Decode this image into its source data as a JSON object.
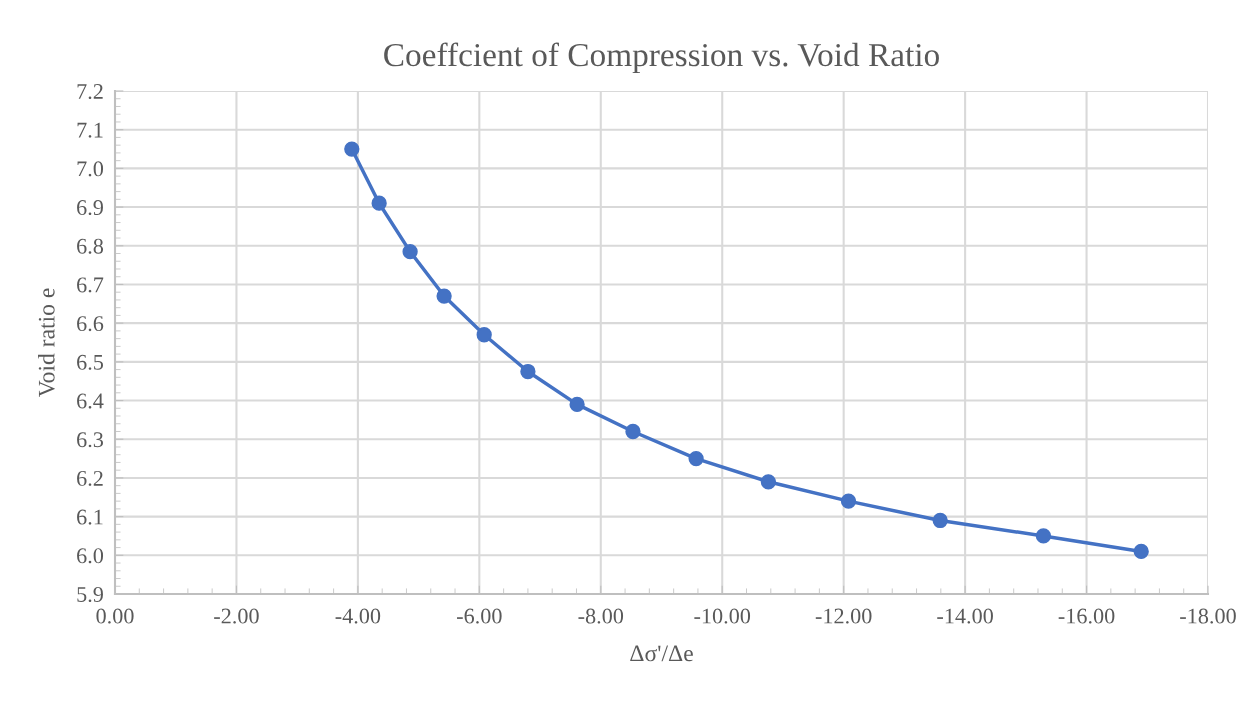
{
  "chart_data": {
    "type": "line",
    "title": "Coeffcient of Compression vs. Void Ratio",
    "xlabel": "Δσ'/Δe",
    "ylabel": "Void ratio e",
    "x": [
      -3.9,
      -4.35,
      -4.86,
      -5.42,
      -6.08,
      -6.8,
      -7.61,
      -8.53,
      -9.57,
      -10.76,
      -12.08,
      -13.59,
      -15.29,
      -16.9
    ],
    "series": [
      {
        "color": "#4472c4",
        "values": [
          7.05,
          6.91,
          6.785,
          6.67,
          6.57,
          6.475,
          6.39,
          6.32,
          6.25,
          6.19,
          6.14,
          6.09,
          6.05,
          6.01
        ]
      }
    ],
    "xlim": [
      0,
      -18
    ],
    "xticks": [
      {
        "value": 0,
        "label": "0.00"
      },
      {
        "value": -2,
        "label": "-2.00"
      },
      {
        "value": -4,
        "label": "-4.00"
      },
      {
        "value": -6,
        "label": "-6.00"
      },
      {
        "value": -8,
        "label": "-8.00"
      },
      {
        "value": -10,
        "label": "-10.00"
      },
      {
        "value": -12,
        "label": "-12.00"
      },
      {
        "value": -14,
        "label": "-14.00"
      },
      {
        "value": -16,
        "label": "-16.00"
      },
      {
        "value": -18,
        "label": "-18.00"
      }
    ],
    "ylim": [
      5.9,
      7.2
    ],
    "yticks": [
      5.9,
      {
        "value": 6,
        "label": "6.0"
      },
      6.1,
      6.2,
      6.3,
      6.4,
      6.5,
      6.6,
      6.7,
      6.8,
      6.9,
      {
        "value": 7,
        "label": "7.0"
      },
      7.1,
      7.2
    ],
    "grid": true,
    "marker": "circle",
    "line_style": "solid"
  }
}
